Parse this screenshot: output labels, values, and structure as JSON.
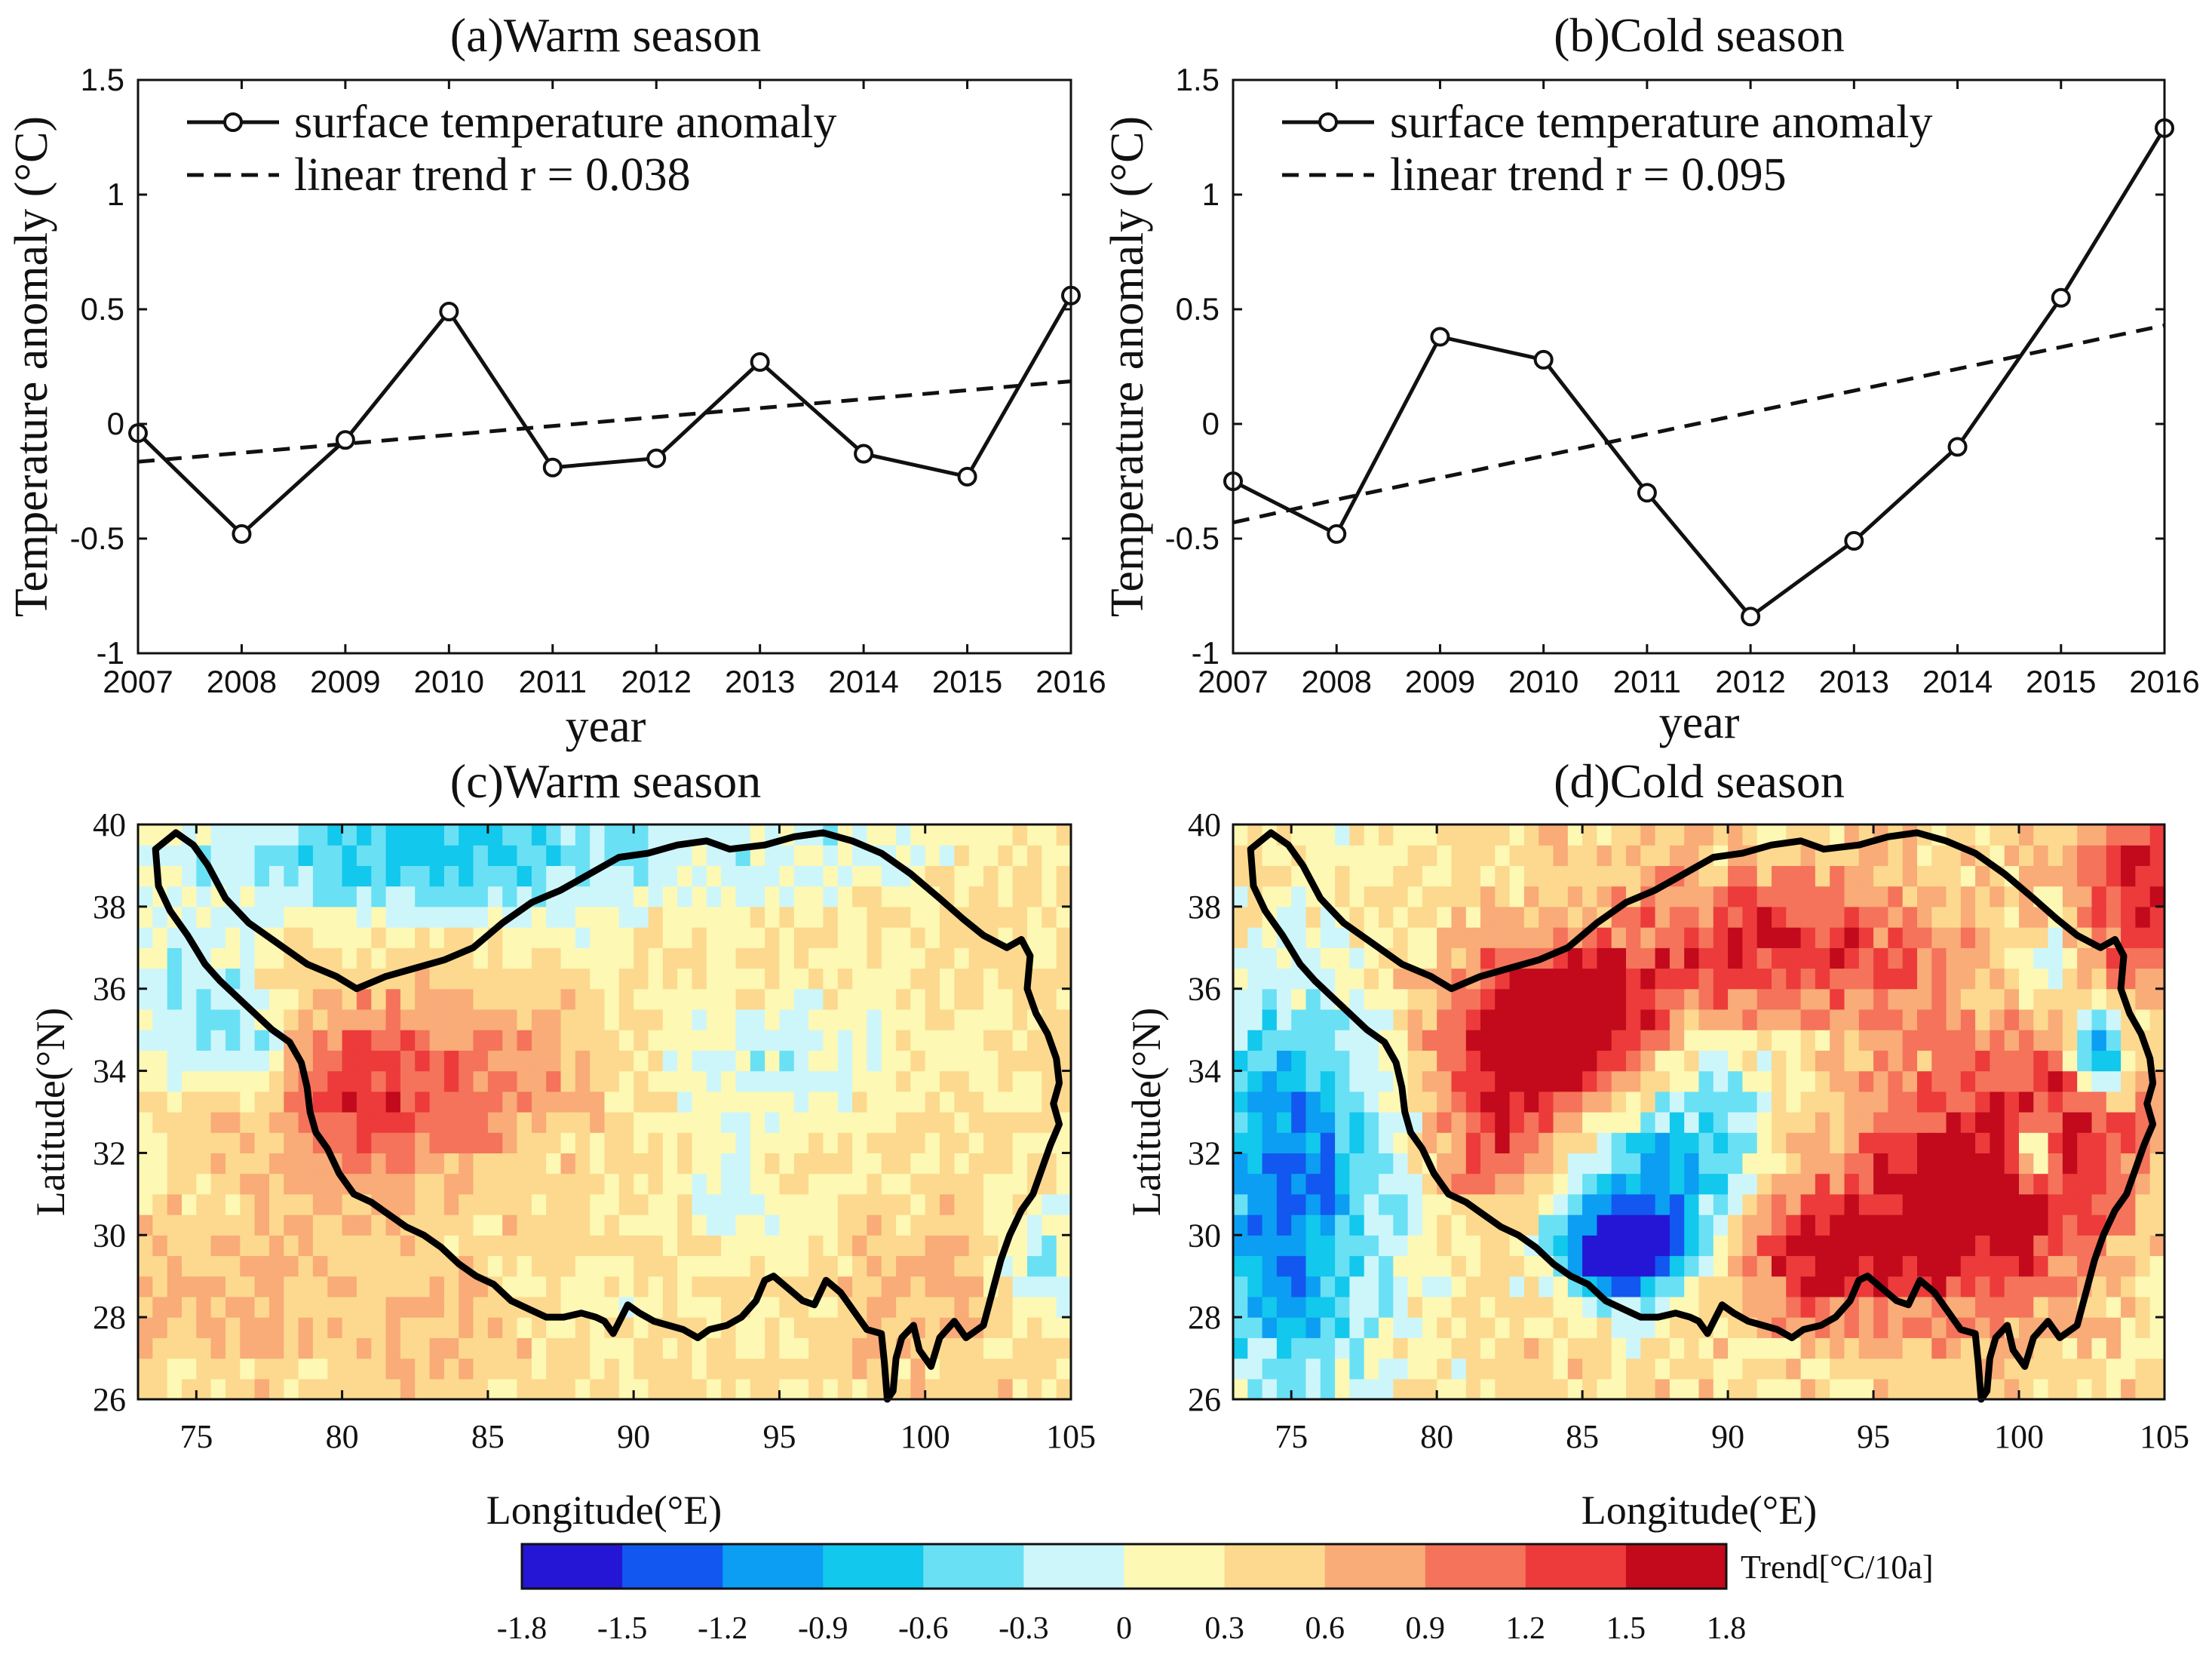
{
  "figure": {
    "colorbar": {
      "unit_label": "Trend[°C/10a]",
      "ticks": [
        "-1.8",
        "-1.5",
        "-1.2",
        "-0.9",
        "-0.6",
        "-0.3",
        "0",
        "0.3",
        "0.6",
        "0.9",
        "1.2",
        "1.5",
        "1.8"
      ],
      "colors": [
        "#2416d4",
        "#1258f0",
        "#0b9ef2",
        "#12c8ec",
        "#6ae0f5",
        "#cdf6fb",
        "#fdf8b4",
        "#fcd98e",
        "#f9ab78",
        "#f4735a",
        "#ec3b3a",
        "#c20a1c"
      ]
    }
  },
  "chart_data": [
    {
      "id": "a",
      "type": "line",
      "title": "(a)Warm season",
      "xlabel": "year",
      "ylabel": "Temperature anomaly (°C)",
      "x": [
        2007,
        2008,
        2009,
        2010,
        2011,
        2012,
        2013,
        2014,
        2015,
        2016
      ],
      "x_tick_labels": [
        "2007",
        "2008",
        "2009",
        "2010",
        "2011",
        "2012",
        "2013",
        "2014",
        "2015",
        "2016"
      ],
      "y_tick_labels": [
        "-1",
        "-0.5",
        "0",
        "0.5",
        "1",
        "1.5"
      ],
      "y_ticks": [
        -1,
        -0.5,
        0,
        0.5,
        1,
        1.5
      ],
      "xlim": [
        2007,
        2016
      ],
      "ylim": [
        -1,
        1.5
      ],
      "legend_location": "top-left",
      "series": [
        {
          "name": "surface temperature anomaly",
          "style": "solid-circle-markers",
          "values": [
            -0.04,
            -0.48,
            -0.07,
            0.49,
            -0.19,
            -0.15,
            0.27,
            -0.13,
            -0.23,
            0.56
          ]
        },
        {
          "name": "linear trend r = 0.038",
          "style": "dashed",
          "values": [
            -0.165,
            -0.126,
            -0.087,
            -0.048,
            -0.009,
            0.03,
            0.069,
            0.108,
            0.147,
            0.186
          ]
        }
      ]
    },
    {
      "id": "b",
      "type": "line",
      "title": "(b)Cold season",
      "xlabel": "year",
      "ylabel": "Temperature anomaly (°C)",
      "x": [
        2007,
        2008,
        2009,
        2010,
        2011,
        2012,
        2013,
        2014,
        2015,
        2016
      ],
      "x_tick_labels": [
        "2007",
        "2008",
        "2009",
        "2010",
        "2011",
        "2012",
        "2013",
        "2014",
        "2015",
        "2016"
      ],
      "y_tick_labels": [
        "-1",
        "-0.5",
        "0",
        "0.5",
        "1",
        "1.5"
      ],
      "y_ticks": [
        -1,
        -0.5,
        0,
        0.5,
        1,
        1.5
      ],
      "xlim": [
        2007,
        2016
      ],
      "ylim": [
        -1,
        1.5
      ],
      "legend_location": "top-left",
      "series": [
        {
          "name": "surface temperature anomaly",
          "style": "solid-circle-markers",
          "values": [
            -0.25,
            -0.48,
            0.38,
            0.28,
            -0.3,
            -0.84,
            -0.51,
            -0.1,
            0.55,
            1.29
          ]
        },
        {
          "name": "linear trend r = 0.095",
          "style": "dashed",
          "values": [
            -0.43,
            -0.33,
            -0.235,
            -0.14,
            -0.045,
            0.05,
            0.145,
            0.24,
            0.335,
            0.43
          ]
        }
      ]
    },
    {
      "id": "c",
      "type": "heatmap",
      "title": "(c)Warm season",
      "xlabel": "Longitude(°E)",
      "ylabel": "Latitude(°N)",
      "x_tick_labels": [
        "75",
        "80",
        "85",
        "90",
        "95",
        "100",
        "105"
      ],
      "y_tick_labels": [
        "26",
        "28",
        "30",
        "32",
        "34",
        "36",
        "38",
        "40"
      ],
      "x_ticks": [
        75,
        80,
        85,
        90,
        95,
        100,
        105
      ],
      "y_ticks": [
        26,
        28,
        30,
        32,
        34,
        36,
        38,
        40
      ],
      "xlim": [
        73,
        105
      ],
      "ylim": [
        26,
        40
      ],
      "value_range": [
        -1.8,
        1.8
      ]
    },
    {
      "id": "d",
      "type": "heatmap",
      "title": "(d)Cold season",
      "xlabel": "Longitude(°E)",
      "ylabel": "Latitude(°N)",
      "x_tick_labels": [
        "75",
        "80",
        "85",
        "90",
        "95",
        "100",
        "105"
      ],
      "y_tick_labels": [
        "26",
        "28",
        "30",
        "32",
        "34",
        "36",
        "38",
        "40"
      ],
      "x_ticks": [
        75,
        80,
        85,
        90,
        95,
        100,
        105
      ],
      "y_ticks": [
        26,
        28,
        30,
        32,
        34,
        36,
        38,
        40
      ],
      "xlim": [
        73,
        105
      ],
      "ylim": [
        26,
        40
      ],
      "value_range": [
        -1.8,
        1.8
      ]
    }
  ]
}
